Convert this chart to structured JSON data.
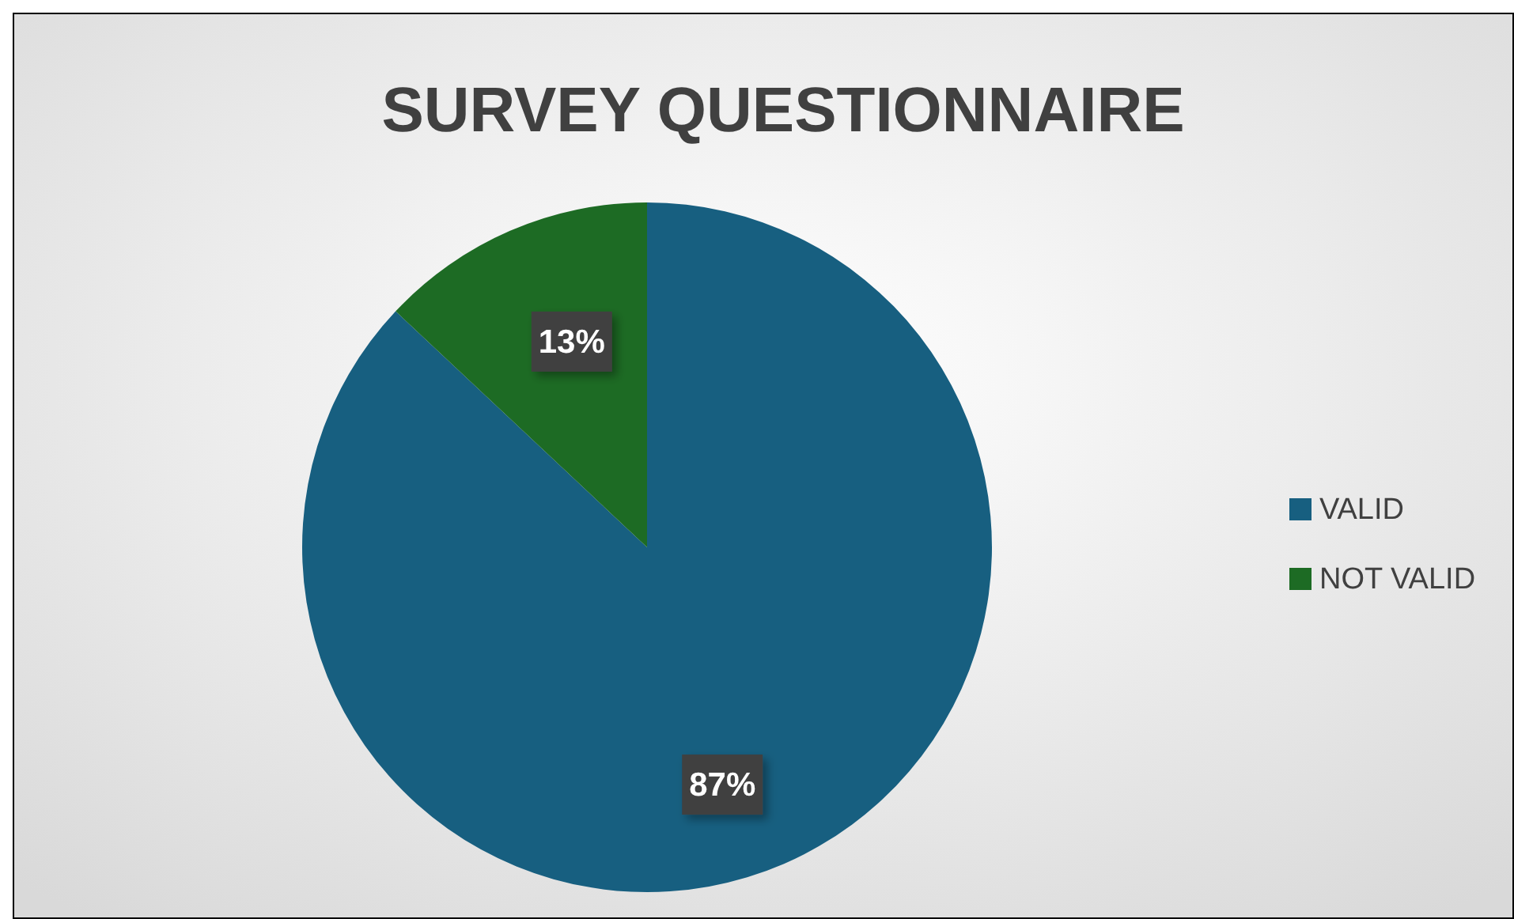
{
  "chart_data": {
    "type": "pie",
    "title": "SURVEY QUESTIONNAIRE",
    "categories": [
      "VALID",
      "NOT VALID"
    ],
    "values": [
      87,
      13
    ],
    "colors": [
      "#175f80",
      "#1d6b24"
    ],
    "value_labels": [
      "87%",
      "13%"
    ],
    "legend": "right"
  }
}
